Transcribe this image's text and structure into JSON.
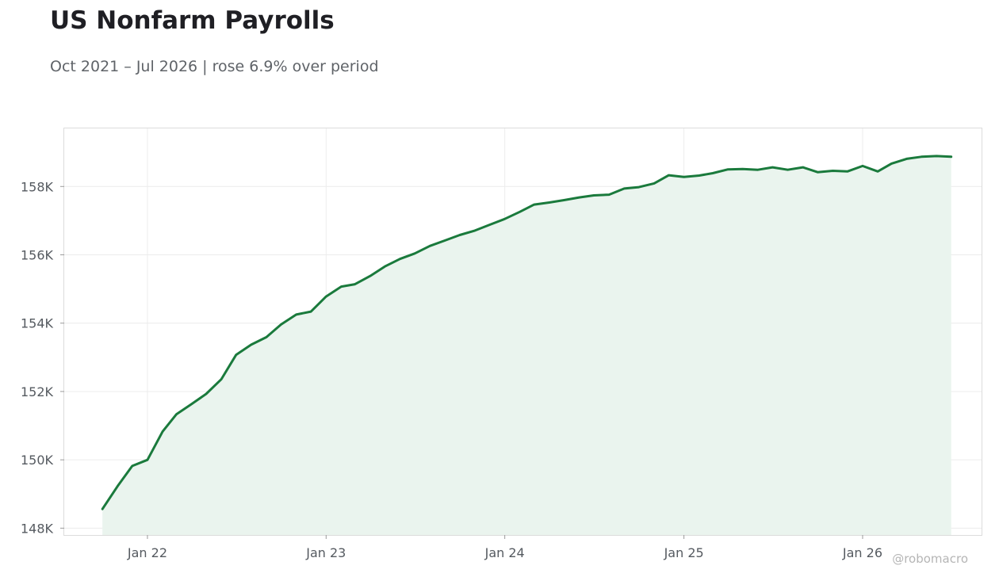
{
  "chart_data": {
    "type": "area",
    "title": "US Nonfarm Payrolls",
    "subtitle": "Oct 2021 – Jul 2026 | rose 6.9% over period",
    "credit": "@robomacro",
    "xlabel": "",
    "ylabel": "",
    "ylim": [
      147800,
      159700
    ],
    "xlim": [
      "2021-07-15",
      "2026-09-01"
    ],
    "yticks": [
      148000,
      150000,
      152000,
      154000,
      156000,
      158000
    ],
    "ytick_labels": [
      "148K",
      "150K",
      "152K",
      "154K",
      "156K",
      "158K"
    ],
    "xticks": [
      "2022-01-01",
      "2023-01-01",
      "2024-01-01",
      "2025-01-01",
      "2026-01-01"
    ],
    "xtick_labels": [
      "Jan 22",
      "Jan 23",
      "Jan 24",
      "Jan 25",
      "Jan 26"
    ],
    "grid": true,
    "line_color": "#1a7a3c",
    "fill_color": "#eaf4ee",
    "series": [
      {
        "x": [
          "2021-10",
          "2021-11",
          "2021-12",
          "2022-01",
          "2022-02",
          "2022-03",
          "2022-04",
          "2022-05",
          "2022-06",
          "2022-07",
          "2022-08",
          "2022-09",
          "2022-10",
          "2022-11",
          "2022-12",
          "2023-01",
          "2023-02",
          "2023-03",
          "2023-04",
          "2023-05",
          "2023-06",
          "2023-07",
          "2023-08",
          "2023-09",
          "2023-10",
          "2023-11",
          "2023-12",
          "2024-01",
          "2024-02",
          "2024-03",
          "2024-04",
          "2024-05",
          "2024-06",
          "2024-07",
          "2024-08",
          "2024-09",
          "2024-10",
          "2024-11",
          "2024-12",
          "2025-01",
          "2025-02",
          "2025-03",
          "2025-04",
          "2025-05",
          "2025-06",
          "2025-07",
          "2025-08",
          "2025-09",
          "2025-10",
          "2025-11",
          "2025-12",
          "2026-01",
          "2026-02",
          "2026-03",
          "2026-04",
          "2026-05",
          "2026-06",
          "2026-07"
        ],
        "values": [
          148560,
          149230,
          149820,
          150000,
          150830,
          151330,
          151630,
          151930,
          152360,
          153070,
          153370,
          153590,
          153960,
          154250,
          154340,
          154780,
          155070,
          155140,
          155380,
          155660,
          155880,
          156040,
          156260,
          156420,
          156580,
          156710,
          156880,
          157050,
          157260,
          157470,
          157530,
          157600,
          157680,
          157740,
          157760,
          157940,
          157980,
          158090,
          158330,
          158280,
          158320,
          158390,
          158500,
          158510,
          158490,
          158560,
          158490,
          158560,
          158420,
          158460,
          158440,
          158600,
          158440,
          158670,
          158810,
          158870,
          158890,
          158870
        ]
      }
    ]
  }
}
